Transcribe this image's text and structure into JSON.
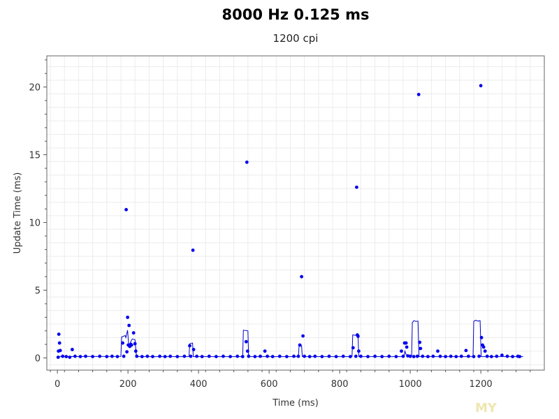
{
  "chart_data": {
    "type": "scatter",
    "title": "8000 Hz 0.125 ms",
    "subtitle": "1200 cpi",
    "xlabel": "Time (ms)",
    "ylabel": "Update Time (ms)",
    "xlim": [
      -30,
      1380
    ],
    "ylim": [
      -0.9,
      22.3
    ],
    "xticks": [
      0,
      200,
      400,
      600,
      800,
      1000,
      1200
    ],
    "yticks": [
      0,
      5,
      10,
      15,
      20
    ],
    "grid": true,
    "legend": "none",
    "colors": {
      "points": "#0000ee",
      "line": "#0000cc",
      "grid": "#ececec",
      "axis": "#555555"
    },
    "series": [
      {
        "values": [
          [
            2,
            0.05
          ],
          [
            3,
            0.5
          ],
          [
            4,
            1.75
          ],
          [
            6,
            1.1
          ],
          [
            8,
            0.55
          ],
          [
            15,
            0.12
          ],
          [
            25,
            0.1
          ],
          [
            35,
            0.05
          ],
          [
            42,
            0.62
          ],
          [
            50,
            0.12
          ],
          [
            65,
            0.1
          ],
          [
            80,
            0.12
          ],
          [
            100,
            0.1
          ],
          [
            120,
            0.12
          ],
          [
            140,
            0.1
          ],
          [
            155,
            0.12
          ],
          [
            170,
            0.1
          ],
          [
            185,
            1.1
          ],
          [
            188,
            0.12
          ],
          [
            195,
            10.95
          ],
          [
            197,
            0.45
          ],
          [
            199,
            3.0
          ],
          [
            201,
            0.95
          ],
          [
            203,
            2.4
          ],
          [
            205,
            0.85
          ],
          [
            208,
            1.0
          ],
          [
            210,
            0.95
          ],
          [
            216,
            1.85
          ],
          [
            220,
            1.05
          ],
          [
            222,
            0.5
          ],
          [
            225,
            0.12
          ],
          [
            240,
            0.1
          ],
          [
            255,
            0.12
          ],
          [
            270,
            0.1
          ],
          [
            290,
            0.12
          ],
          [
            305,
            0.1
          ],
          [
            320,
            0.12
          ],
          [
            340,
            0.1
          ],
          [
            360,
            0.12
          ],
          [
            375,
            0.9
          ],
          [
            378,
            0.12
          ],
          [
            384,
            7.95
          ],
          [
            386,
            0.62
          ],
          [
            395,
            0.12
          ],
          [
            410,
            0.1
          ],
          [
            430,
            0.12
          ],
          [
            450,
            0.1
          ],
          [
            470,
            0.12
          ],
          [
            490,
            0.1
          ],
          [
            510,
            0.12
          ],
          [
            525,
            0.1
          ],
          [
            535,
            1.2
          ],
          [
            537,
            14.45
          ],
          [
            539,
            0.5
          ],
          [
            542,
            0.12
          ],
          [
            560,
            0.1
          ],
          [
            575,
            0.12
          ],
          [
            588,
            0.5
          ],
          [
            595,
            0.12
          ],
          [
            610,
            0.1
          ],
          [
            630,
            0.12
          ],
          [
            650,
            0.1
          ],
          [
            670,
            0.12
          ],
          [
            683,
            0.12
          ],
          [
            687,
            0.95
          ],
          [
            692,
            6.0
          ],
          [
            696,
            1.62
          ],
          [
            700,
            0.12
          ],
          [
            715,
            0.1
          ],
          [
            730,
            0.12
          ],
          [
            750,
            0.1
          ],
          [
            770,
            0.12
          ],
          [
            790,
            0.1
          ],
          [
            810,
            0.12
          ],
          [
            830,
            0.1
          ],
          [
            838,
            0.75
          ],
          [
            846,
            0.12
          ],
          [
            848,
            12.6
          ],
          [
            850,
            1.7
          ],
          [
            852,
            1.6
          ],
          [
            854,
            0.5
          ],
          [
            860,
            0.12
          ],
          [
            880,
            0.1
          ],
          [
            900,
            0.12
          ],
          [
            920,
            0.1
          ],
          [
            940,
            0.12
          ],
          [
            960,
            0.1
          ],
          [
            975,
            0.5
          ],
          [
            980,
            0.12
          ],
          [
            984,
            1.1
          ],
          [
            988,
            1.1
          ],
          [
            990,
            0.8
          ],
          [
            993,
            0.15
          ],
          [
            1000,
            0.12
          ],
          [
            1010,
            0.1
          ],
          [
            1020,
            0.12
          ],
          [
            1024,
            19.45
          ],
          [
            1027,
            1.15
          ],
          [
            1029,
            0.7
          ],
          [
            1035,
            0.12
          ],
          [
            1050,
            0.1
          ],
          [
            1065,
            0.12
          ],
          [
            1078,
            0.5
          ],
          [
            1085,
            0.12
          ],
          [
            1100,
            0.1
          ],
          [
            1115,
            0.12
          ],
          [
            1130,
            0.1
          ],
          [
            1145,
            0.12
          ],
          [
            1158,
            0.55
          ],
          [
            1165,
            0.12
          ],
          [
            1180,
            0.1
          ],
          [
            1195,
            0.12
          ],
          [
            1200,
            20.1
          ],
          [
            1202,
            1.5
          ],
          [
            1205,
            0.95
          ],
          [
            1208,
            0.8
          ],
          [
            1212,
            0.5
          ],
          [
            1218,
            0.12
          ],
          [
            1230,
            0.1
          ],
          [
            1245,
            0.12
          ],
          [
            1260,
            0.2
          ],
          [
            1275,
            0.12
          ],
          [
            1290,
            0.1
          ],
          [
            1305,
            0.12
          ],
          [
            1310,
            0.1
          ]
        ]
      },
      {
        "style": "line",
        "values": [
          [
            0,
            0.1
          ],
          [
            180,
            0.12
          ],
          [
            182,
            1.55
          ],
          [
            192,
            1.65
          ],
          [
            194,
            1.5
          ],
          [
            199,
            2.05
          ],
          [
            202,
            0.9
          ],
          [
            212,
            1.4
          ],
          [
            220,
            1.35
          ],
          [
            224,
            0.1
          ],
          [
            373,
            0.1
          ],
          [
            375,
            1.05
          ],
          [
            383,
            1.1
          ],
          [
            385,
            0.1
          ],
          [
            525,
            0.1
          ],
          [
            527,
            2.05
          ],
          [
            540,
            2.0
          ],
          [
            542,
            0.1
          ],
          [
            683,
            0.1
          ],
          [
            685,
            0.85
          ],
          [
            692,
            0.9
          ],
          [
            694,
            0.1
          ],
          [
            835,
            0.1
          ],
          [
            837,
            1.7
          ],
          [
            852,
            1.65
          ],
          [
            854,
            0.1
          ],
          [
            982,
            0.1
          ],
          [
            985,
            0.5
          ],
          [
            988,
            0.25
          ],
          [
            1004,
            0.1
          ],
          [
            1006,
            2.6
          ],
          [
            1010,
            2.75
          ],
          [
            1016,
            2.7
          ],
          [
            1022,
            2.72
          ],
          [
            1025,
            0.1
          ],
          [
            1178,
            0.1
          ],
          [
            1180,
            2.7
          ],
          [
            1185,
            2.78
          ],
          [
            1192,
            2.72
          ],
          [
            1198,
            2.75
          ],
          [
            1201,
            0.1
          ],
          [
            1320,
            0.1
          ]
        ]
      }
    ]
  }
}
